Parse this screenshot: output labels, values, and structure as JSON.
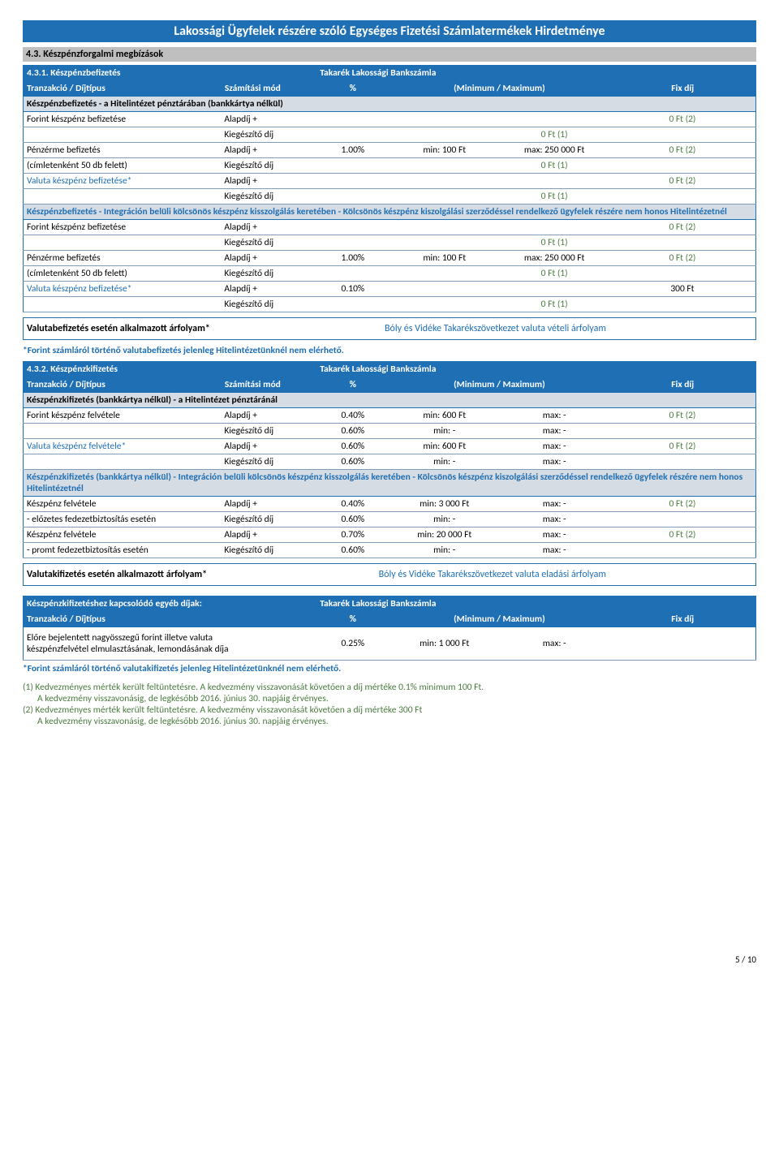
{
  "page_title": "Lakossági Ügyfelek részére szóló Egységes Fizetési Számlatermékek Hirdetménye",
  "section_43": "4.3. Készpénzforgalmi megbízások",
  "page_number": "5 / 10",
  "table1": {
    "header_left": "4.3.1. Készpénzbefizetés",
    "header_right": "Takarék Lakossági Bankszámla",
    "cols": [
      "Tranzakció / Díjtípus",
      "Számítási mód",
      "%",
      "(Minimum / Maximum)",
      "Fix díj"
    ],
    "sub1": "Készpénzbefizetés - a Hitelintézet pénztárában (bankkártya nélkül)",
    "rows1": [
      {
        "desc": "Forint készpénz befizetése",
        "mode": "Alapdíj +",
        "pct": "",
        "min": "",
        "max": "",
        "fix": "0 Ft (2)",
        "fix_class": "green-text"
      },
      {
        "desc": "",
        "mode": "Kiegészítő díj",
        "pct": "",
        "min": "",
        "max": "0 Ft (1)",
        "fix": "",
        "max_class": "green-text"
      },
      {
        "desc": "Pénzérme befizetés",
        "mode": "Alapdíj +",
        "pct": "1.00%",
        "min": "min:  100 Ft",
        "max": "max:  250 000 Ft",
        "fix": "0 Ft (2)",
        "fix_class": "green-text"
      },
      {
        "desc": "(címletenként 50 db felett)",
        "mode": "Kiegészítő díj",
        "pct": "",
        "min": "",
        "max": "0 Ft (1)",
        "fix": "",
        "max_class": "green-text"
      },
      {
        "desc": "Valuta készpénz befizetése*",
        "desc_class": "blue-text",
        "mode": "Alapdíj +",
        "pct": "",
        "min": "",
        "max": "",
        "fix": "0 Ft (2)",
        "fix_class": "green-text"
      },
      {
        "desc": "",
        "mode": "Kiegészítő díj",
        "pct": "",
        "min": "",
        "max": "0 Ft (1)",
        "fix": "",
        "max_class": "green-text"
      }
    ],
    "sub2": "Készpénzbefizetés - Integráción belüli kölcsönös készpénz kisszolgálás keretében - Kölcsönös készpénz kiszolgálási szerződéssel rendelkező ügyfelek részére nem honos Hitelintézetnél",
    "rows2": [
      {
        "desc": "Forint készpénz befizetése",
        "mode": "Alapdíj +",
        "pct": "",
        "min": "",
        "max": "",
        "fix": "0 Ft (2)",
        "fix_class": "green-text"
      },
      {
        "desc": "",
        "mode": "Kiegészítő díj",
        "pct": "",
        "min": "",
        "max": "0 Ft (1)",
        "fix": "",
        "max_class": "green-text"
      },
      {
        "desc": "Pénzérme befizetés",
        "mode": "Alapdíj +",
        "pct": "1.00%",
        "min": "min:  100 Ft",
        "max": "max:  250 000 Ft",
        "fix": "0 Ft (2)",
        "fix_class": "green-text"
      },
      {
        "desc": "(címletenként 50 db felett)",
        "mode": "Kiegészítő díj",
        "pct": "",
        "min": "",
        "max": "0 Ft (1)",
        "fix": "",
        "max_class": "green-text"
      },
      {
        "desc": "Valuta készpénz befizetése*",
        "desc_class": "blue-text",
        "mode": "Alapdíj +",
        "pct": "0.10%",
        "min": "",
        "max": "",
        "fix": "300 Ft"
      },
      {
        "desc": "",
        "mode": "Kiegészítő díj",
        "pct": "",
        "min": "",
        "max": "0 Ft (1)",
        "fix": "",
        "max_class": "green-text"
      }
    ]
  },
  "note1_left": "Valutabefizetés esetén alkalmazott árfolyam*",
  "note1_right": "Bóly és Vidéke Takarékszövetkezet valuta vételi árfolyam",
  "foot1": "*Forint számláról történő valutabefizetés jelenleg Hitelintézetünknél nem elérhető.",
  "table2": {
    "header_left": "4.3.2. Készpénzkifizetés",
    "header_right": "Takarék Lakossági Bankszámla",
    "cols": [
      "Tranzakció / Díjtípus",
      "Számítási mód",
      "%",
      "(Minimum / Maximum)",
      "Fix díj"
    ],
    "sub1": "Készpénzkifizetés (bankkártya nélkül) - a Hitelintézet pénztáránál",
    "rows1": [
      {
        "desc": "Forint készpénz felvétele",
        "mode": "Alapdíj +",
        "pct": "0.40%",
        "min": "min:  600 Ft",
        "max": "max:  -",
        "fix": "0 Ft (2)",
        "fix_class": "green-text"
      },
      {
        "desc": "",
        "mode": "Kiegészítő díj",
        "pct": "0.60%",
        "min": "min:  -",
        "max": "max:  -",
        "fix": ""
      },
      {
        "desc": "Valuta készpénz felvétele*",
        "desc_class": "blue-text",
        "mode": "Alapdíj +",
        "pct": "0.60%",
        "min": "min:  600 Ft",
        "max": "max:  -",
        "fix": "0 Ft (2)",
        "fix_class": "green-text"
      },
      {
        "desc": "",
        "mode": "Kiegészítő díj",
        "pct": "0.60%",
        "min": "min:  -",
        "max": "max:  -",
        "fix": ""
      }
    ],
    "sub2": "Készpénzkifizetés (bankkártya nélkül) - Integráción belüli kölcsönös készpénz kisszolgálás keretében - Kölcsönös készpénz kiszolgálási szerződéssel rendelkező ügyfelek részére nem honos Hitelintézetnél",
    "rows2": [
      {
        "desc": "Készpénz felvétele",
        "mode": "Alapdíj +",
        "pct": "0.40%",
        "min": "min:  3 000 Ft",
        "max": "max:  -",
        "fix": "0 Ft (2)",
        "fix_class": "green-text"
      },
      {
        "desc": "- előzetes fedezetbiztosítás esetén",
        "mode": "Kiegészítő díj",
        "pct": "0.60%",
        "min": "min:  -",
        "max": "max:  -",
        "fix": ""
      },
      {
        "desc": "Készpénz felvétele",
        "mode": "Alapdíj +",
        "pct": "0.70%",
        "min": "min:  20 000 Ft",
        "max": "max:  -",
        "fix": "0 Ft (2)",
        "fix_class": "green-text"
      },
      {
        "desc": "- promt fedezetbiztosítás esetén",
        "mode": "Kiegészítő díj",
        "pct": "0.60%",
        "min": "min:  -",
        "max": "max:  -",
        "fix": ""
      }
    ]
  },
  "note2_left": "Valutakifizetés esetén alkalmazott árfolyam*",
  "note2_right": "Bóly és Vidéke Takarékszövetkezet valuta eladási árfolyam",
  "table3": {
    "header_left": "Készpénzkifizetéshez kapcsolódó egyéb díjak:",
    "header_right": "Takarék Lakossági Bankszámla",
    "cols": [
      "Tranzakció / Díjtípus",
      "",
      "%",
      "(Minimum / Maximum)",
      "Fix díj"
    ],
    "row_desc1": "Előre bejelentett nagyösszegű forint illetve valuta",
    "row_desc2": "készpénzfelvétel elmulasztásának, lemondásának díja",
    "pct": "0.25%",
    "min": "min:  1 000 Ft",
    "max": "max:  -"
  },
  "foot2": "*Forint számláról történő valutakifizetés jelenleg Hitelintézetünknél nem elérhető.",
  "kedvez": {
    "l1a": "(1) Kedvezményes mérték került feltüntetésre. A kedvezmény visszavonását követően a díj mértéke 0.1% minimum 100 Ft.",
    "l1b": "A kedvezmény visszavonásig, de legkésőbb 2016. június 30. napjáig érvényes.",
    "l2a": "(2) Kedvezményes mérték került feltüntetésre. A kedvezmény visszavonását követően a díj mértéke 300 Ft",
    "l2b": "A kedvezmény visszavonásig, de legkésőbb 2016. június 30. napjáig érvényes."
  }
}
